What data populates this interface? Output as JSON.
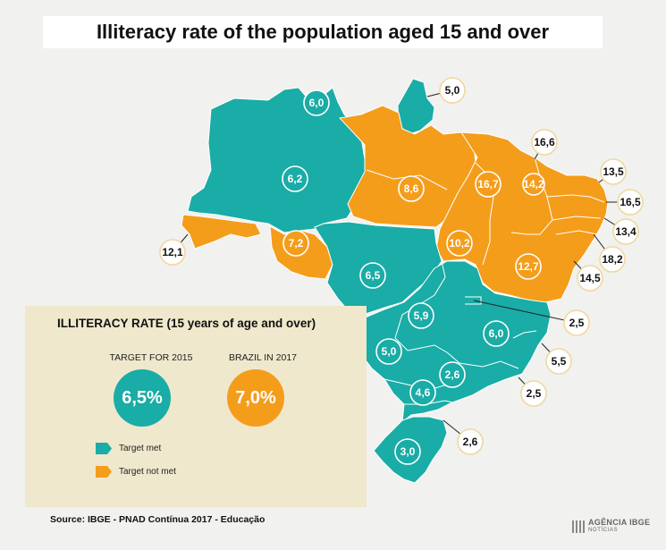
{
  "title": "Illiteracy rate of the population aged 15 and over",
  "legend": {
    "title": "ILLITERACY RATE (15 years of age and over)",
    "target_label": "TARGET FOR 2015",
    "target_value": "6,5%",
    "brazil_label": "BRAZIL IN 2017",
    "brazil_value": "7,0%",
    "met_label": "Target met",
    "not_met_label": "Target not met"
  },
  "colors": {
    "met": "#1aaca6",
    "not_met": "#f49d1b",
    "panel": "#efe8cc"
  },
  "source": "Source: IBGE - PNAD Contínua 2017 - Educação",
  "logo": {
    "text": "AGÊNCIA IBGE",
    "sub": "NOTÍCIAS"
  },
  "chart_data": {
    "type": "choropleth-map",
    "title": "Illiteracy rate of the population aged 15 and over",
    "unit": "%",
    "target_2015": 6.5,
    "brazil_2017": 7.0,
    "values": [
      {
        "label": "6,0",
        "value": 6.0,
        "status": "met"
      },
      {
        "label": "5,0",
        "value": 5.0,
        "status": "met"
      },
      {
        "label": "6,2",
        "value": 6.2,
        "status": "met"
      },
      {
        "label": "8,6",
        "value": 8.6,
        "status": "not_met"
      },
      {
        "label": "16,6",
        "value": 16.6,
        "status": "not_met"
      },
      {
        "label": "16,7",
        "value": 16.7,
        "status": "not_met"
      },
      {
        "label": "14,2",
        "value": 14.2,
        "status": "not_met"
      },
      {
        "label": "13,5",
        "value": 13.5,
        "status": "not_met"
      },
      {
        "label": "16,5",
        "value": 16.5,
        "status": "not_met"
      },
      {
        "label": "13,4",
        "value": 13.4,
        "status": "not_met"
      },
      {
        "label": "18,2",
        "value": 18.2,
        "status": "not_met"
      },
      {
        "label": "14,5",
        "value": 14.5,
        "status": "not_met"
      },
      {
        "label": "12,1",
        "value": 12.1,
        "status": "not_met"
      },
      {
        "label": "7,2",
        "value": 7.2,
        "status": "not_met"
      },
      {
        "label": "10,2",
        "value": 10.2,
        "status": "not_met"
      },
      {
        "label": "12,7",
        "value": 12.7,
        "status": "not_met"
      },
      {
        "label": "6,5",
        "value": 6.5,
        "status": "met"
      },
      {
        "label": "5,9",
        "value": 5.9,
        "status": "met"
      },
      {
        "label": "2,5",
        "value": 2.5,
        "status": "met"
      },
      {
        "label": "6,0",
        "value": 6.0,
        "status": "met"
      },
      {
        "label": "5,0",
        "value": 5.0,
        "status": "met"
      },
      {
        "label": "5,5",
        "value": 5.5,
        "status": "met"
      },
      {
        "label": "2,6",
        "value": 2.6,
        "status": "met"
      },
      {
        "label": "2,5",
        "value": 2.5,
        "status": "met"
      },
      {
        "label": "4,6",
        "value": 4.6,
        "status": "met"
      },
      {
        "label": "2,6",
        "value": 2.6,
        "status": "met"
      },
      {
        "label": "3,0",
        "value": 3.0,
        "status": "met"
      }
    ]
  }
}
